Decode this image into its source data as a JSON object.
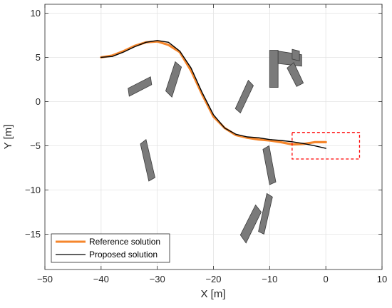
{
  "chart_data": {
    "type": "line",
    "title": "",
    "xlabel": "X [m]",
    "ylabel": "Y [m]",
    "xlim": [
      -50,
      10
    ],
    "ylim": [
      -19,
      11
    ],
    "xticks": [
      -50,
      -40,
      -30,
      -20,
      -10,
      0,
      10
    ],
    "yticks": [
      -15,
      -10,
      -5,
      0,
      5,
      10
    ],
    "xtick_labels": [
      "−50",
      "−40",
      "−30",
      "−20",
      "−10",
      "0",
      "10"
    ],
    "ytick_labels": [
      "−15",
      "−10",
      "−5",
      "0",
      "5",
      "10"
    ],
    "grid": true,
    "legend_position": "bottom-left",
    "series": [
      {
        "name": "Reference solution",
        "color": "#f5862c",
        "line_width": "thick",
        "x": [
          -40,
          -38,
          -36,
          -34,
          -32,
          -30,
          -28,
          -26,
          -24,
          -22,
          -20,
          -18,
          -16,
          -14,
          -12,
          -10,
          -8,
          -6,
          -4,
          -2,
          0
        ],
        "y": [
          5.0,
          5.2,
          5.7,
          6.3,
          6.7,
          6.8,
          6.4,
          5.6,
          3.5,
          0.8,
          -1.7,
          -3.0,
          -3.8,
          -4.1,
          -4.3,
          -4.4,
          -4.6,
          -4.85,
          -4.8,
          -4.6,
          -4.6
        ]
      },
      {
        "name": "Proposed solution",
        "color": "#000000",
        "line_width": "thin",
        "x": [
          -40,
          -38,
          -36,
          -34,
          -32,
          -30,
          -28,
          -26,
          -24,
          -22,
          -20,
          -18,
          -16,
          -14,
          -12,
          -10,
          -8,
          -6,
          -4,
          -2,
          0
        ],
        "y": [
          5.0,
          5.1,
          5.6,
          6.2,
          6.7,
          6.9,
          6.7,
          5.7,
          3.8,
          1.0,
          -1.5,
          -3.0,
          -3.7,
          -4.0,
          -4.1,
          -4.3,
          -4.4,
          -4.55,
          -4.75,
          -5.0,
          -5.3
        ]
      }
    ],
    "obstacles": [
      {
        "corners": [
          [
            -35.2,
            1.5
          ],
          [
            -31.2,
            2.8
          ],
          [
            -31.0,
            1.9
          ],
          [
            -35.0,
            0.6
          ]
        ]
      },
      {
        "corners": [
          [
            -28.5,
            1.2
          ],
          [
            -26.8,
            4.5
          ],
          [
            -25.7,
            3.9
          ],
          [
            -27.4,
            0.5
          ]
        ]
      },
      {
        "corners": [
          [
            -33.0,
            -4.8
          ],
          [
            -31.5,
            -9.0
          ],
          [
            -30.4,
            -8.6
          ],
          [
            -32.0,
            -4.3
          ]
        ]
      },
      {
        "corners": [
          [
            -16.1,
            -0.8
          ],
          [
            -13.8,
            2.4
          ],
          [
            -12.9,
            1.8
          ],
          [
            -15.2,
            -1.3
          ]
        ]
      },
      {
        "corners": [
          [
            -11.2,
            -5.4
          ],
          [
            -10.0,
            -9.4
          ],
          [
            -8.9,
            -9.1
          ],
          [
            -10.1,
            -5.0
          ]
        ]
      },
      {
        "corners": [
          [
            -15.2,
            -15.1
          ],
          [
            -12.5,
            -11.7
          ],
          [
            -11.5,
            -12.5
          ],
          [
            -14.2,
            -16.0
          ]
        ]
      },
      {
        "corners": [
          [
            -12.0,
            -14.7
          ],
          [
            -10.5,
            -10.4
          ],
          [
            -9.5,
            -10.8
          ],
          [
            -11.0,
            -15.0
          ]
        ]
      },
      {
        "corners": [
          [
            -10.0,
            5.8
          ],
          [
            -8.5,
            5.8
          ],
          [
            -8.5,
            1.6
          ],
          [
            -10.0,
            1.6
          ]
        ]
      },
      {
        "corners": [
          [
            -8.5,
            5.7
          ],
          [
            -4.3,
            5.3
          ],
          [
            -4.3,
            4.0
          ],
          [
            -8.5,
            4.3
          ]
        ]
      },
      {
        "corners": [
          [
            -6.9,
            3.8
          ],
          [
            -5.2,
            1.7
          ],
          [
            -4.0,
            2.1
          ],
          [
            -5.7,
            4.4
          ]
        ]
      },
      {
        "corners": [
          [
            -6.0,
            5.9
          ],
          [
            -4.7,
            5.7
          ],
          [
            -4.7,
            4.6
          ],
          [
            -6.0,
            4.8
          ]
        ]
      }
    ],
    "highlight_box": {
      "x": [
        -6,
        6
      ],
      "y": [
        -6.5,
        -3.5
      ],
      "color": "#ff0000",
      "style": "dashed"
    }
  }
}
